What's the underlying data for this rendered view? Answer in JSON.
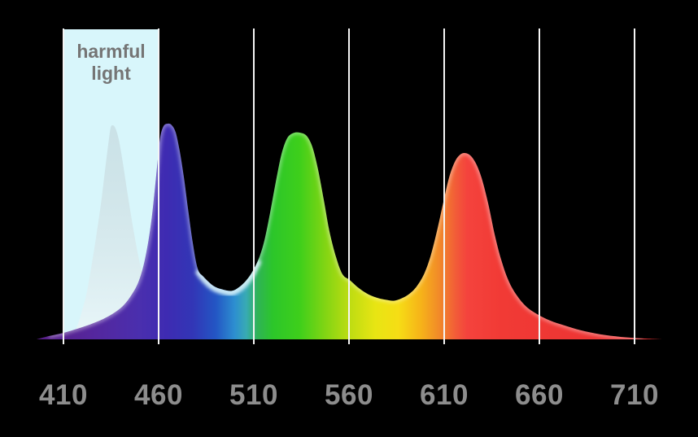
{
  "theme": {
    "background": "#000000",
    "gridline": "#f5f5f5",
    "tick_text": "#8d8d8d",
    "harmful_fill": "#d8f6fb",
    "harmful_text": "#757575",
    "ghost_top": "rgba(189,206,211,0.50)",
    "ghost_bottom": "rgba(236,247,249,0.85)",
    "gloss": "rgba(255,255,255,0.38)",
    "dip_highlight": "rgba(214,242,250,0.9)"
  },
  "chart_data": {
    "type": "area",
    "title": "",
    "x_ticks": [
      "410",
      "460",
      "510",
      "560",
      "610",
      "660",
      "710"
    ],
    "x_tick_values_nm": [
      410,
      460,
      510,
      560,
      610,
      660,
      710
    ],
    "x_range_nm": [
      396,
      724
    ],
    "y_range": [
      0,
      1
    ],
    "grid": "vertical-only",
    "legend": "none",
    "annotations": [
      {
        "label": "harmful light",
        "from_nm": 410,
        "to_nm": 460
      }
    ],
    "series": [
      {
        "name": "harmful-violet-ghost-peak",
        "style": "ghost",
        "peak_nm": 435,
        "points": [
          [
            414.3,
            0
          ],
          [
            417.3,
            0.064
          ],
          [
            419.4,
            0.121
          ],
          [
            422.0,
            0.208
          ],
          [
            424.5,
            0.328
          ],
          [
            427.1,
            0.472
          ],
          [
            429.7,
            0.63
          ],
          [
            431.8,
            0.781
          ],
          [
            433.5,
            0.902
          ],
          [
            434.8,
            0.981
          ],
          [
            436.1,
            0.992
          ],
          [
            437.4,
            0.977
          ],
          [
            439.1,
            0.925
          ],
          [
            441.2,
            0.819
          ],
          [
            443.8,
            0.668
          ],
          [
            446.8,
            0.506
          ],
          [
            449.8,
            0.366
          ],
          [
            453.2,
            0.245
          ],
          [
            457.0,
            0.147
          ],
          [
            460.9,
            0.072
          ],
          [
            464.7,
            0.026
          ],
          [
            468.1,
            0
          ]
        ]
      },
      {
        "name": "led-emission-spectrum",
        "style": "spectral-gradient",
        "peaks_nm": [
          464,
          534,
          620
        ],
        "points": [
          [
            395.9,
            0
          ],
          [
            402.3,
            0.015
          ],
          [
            410.0,
            0.03
          ],
          [
            417.3,
            0.049
          ],
          [
            423.7,
            0.068
          ],
          [
            430.1,
            0.091
          ],
          [
            435.6,
            0.117
          ],
          [
            440.8,
            0.151
          ],
          [
            445.0,
            0.196
          ],
          [
            449.3,
            0.264
          ],
          [
            452.7,
            0.366
          ],
          [
            455.7,
            0.517
          ],
          [
            457.9,
            0.687
          ],
          [
            459.6,
            0.838
          ],
          [
            460.9,
            0.94
          ],
          [
            462.6,
            0.989
          ],
          [
            464.7,
            1.0
          ],
          [
            466.8,
            0.994
          ],
          [
            469.0,
            0.958
          ],
          [
            471.1,
            0.872
          ],
          [
            473.2,
            0.755
          ],
          [
            475.4,
            0.608
          ],
          [
            477.9,
            0.449
          ],
          [
            480.5,
            0.328
          ],
          [
            483.5,
            0.291
          ],
          [
            488.6,
            0.249
          ],
          [
            493.3,
            0.232
          ],
          [
            498.5,
            0.225
          ],
          [
            502.7,
            0.245
          ],
          [
            506.2,
            0.275
          ],
          [
            509.2,
            0.313
          ],
          [
            512.6,
            0.374
          ],
          [
            515.6,
            0.46
          ],
          [
            518.5,
            0.585
          ],
          [
            521.5,
            0.728
          ],
          [
            524.5,
            0.857
          ],
          [
            527.5,
            0.932
          ],
          [
            530.9,
            0.957
          ],
          [
            534.4,
            0.958
          ],
          [
            537.8,
            0.943
          ],
          [
            540.8,
            0.891
          ],
          [
            543.8,
            0.785
          ],
          [
            546.8,
            0.645
          ],
          [
            549.7,
            0.502
          ],
          [
            553.2,
            0.381
          ],
          [
            556.6,
            0.302
          ],
          [
            560.4,
            0.275
          ],
          [
            565.1,
            0.238
          ],
          [
            570.3,
            0.208
          ],
          [
            575.4,
            0.191
          ],
          [
            579.7,
            0.183
          ],
          [
            583.5,
            0.179
          ],
          [
            587.4,
            0.189
          ],
          [
            591.7,
            0.211
          ],
          [
            595.5,
            0.245
          ],
          [
            599.4,
            0.302
          ],
          [
            602.8,
            0.385
          ],
          [
            606.2,
            0.502
          ],
          [
            609.6,
            0.638
          ],
          [
            612.6,
            0.751
          ],
          [
            615.6,
            0.823
          ],
          [
            618.2,
            0.855
          ],
          [
            620.7,
            0.864
          ],
          [
            623.7,
            0.853
          ],
          [
            626.7,
            0.815
          ],
          [
            629.7,
            0.747
          ],
          [
            633.1,
            0.63
          ],
          [
            636.5,
            0.487
          ],
          [
            639.9,
            0.37
          ],
          [
            643.8,
            0.272
          ],
          [
            648.1,
            0.204
          ],
          [
            653.2,
            0.151
          ],
          [
            658.8,
            0.117
          ],
          [
            665.6,
            0.087
          ],
          [
            673.3,
            0.064
          ],
          [
            681.8,
            0.042
          ],
          [
            692.1,
            0.023
          ],
          [
            703.2,
            0.011
          ],
          [
            714.4,
            0.004
          ],
          [
            724.2,
            0
          ]
        ]
      }
    ],
    "spectral_gradient": [
      [
        396,
        "#571e85"
      ],
      [
        424,
        "#55269c"
      ],
      [
        450,
        "#4a2fae"
      ],
      [
        464,
        "#3e2bb2"
      ],
      [
        478,
        "#3236b6"
      ],
      [
        490,
        "#2356c4"
      ],
      [
        500,
        "#2d8fd0"
      ],
      [
        506,
        "#38aab4"
      ],
      [
        512,
        "#2fb356"
      ],
      [
        520,
        "#2cc62a"
      ],
      [
        534,
        "#3ecf1b"
      ],
      [
        548,
        "#84d513"
      ],
      [
        560,
        "#bcdc12"
      ],
      [
        574,
        "#e8e513"
      ],
      [
        586,
        "#f6dd15"
      ],
      [
        598,
        "#f6b219"
      ],
      [
        608,
        "#f1872a"
      ],
      [
        616,
        "#f25c38"
      ],
      [
        622,
        "#f4433d"
      ],
      [
        640,
        "#f13a35"
      ],
      [
        724,
        "#e93133"
      ]
    ]
  }
}
